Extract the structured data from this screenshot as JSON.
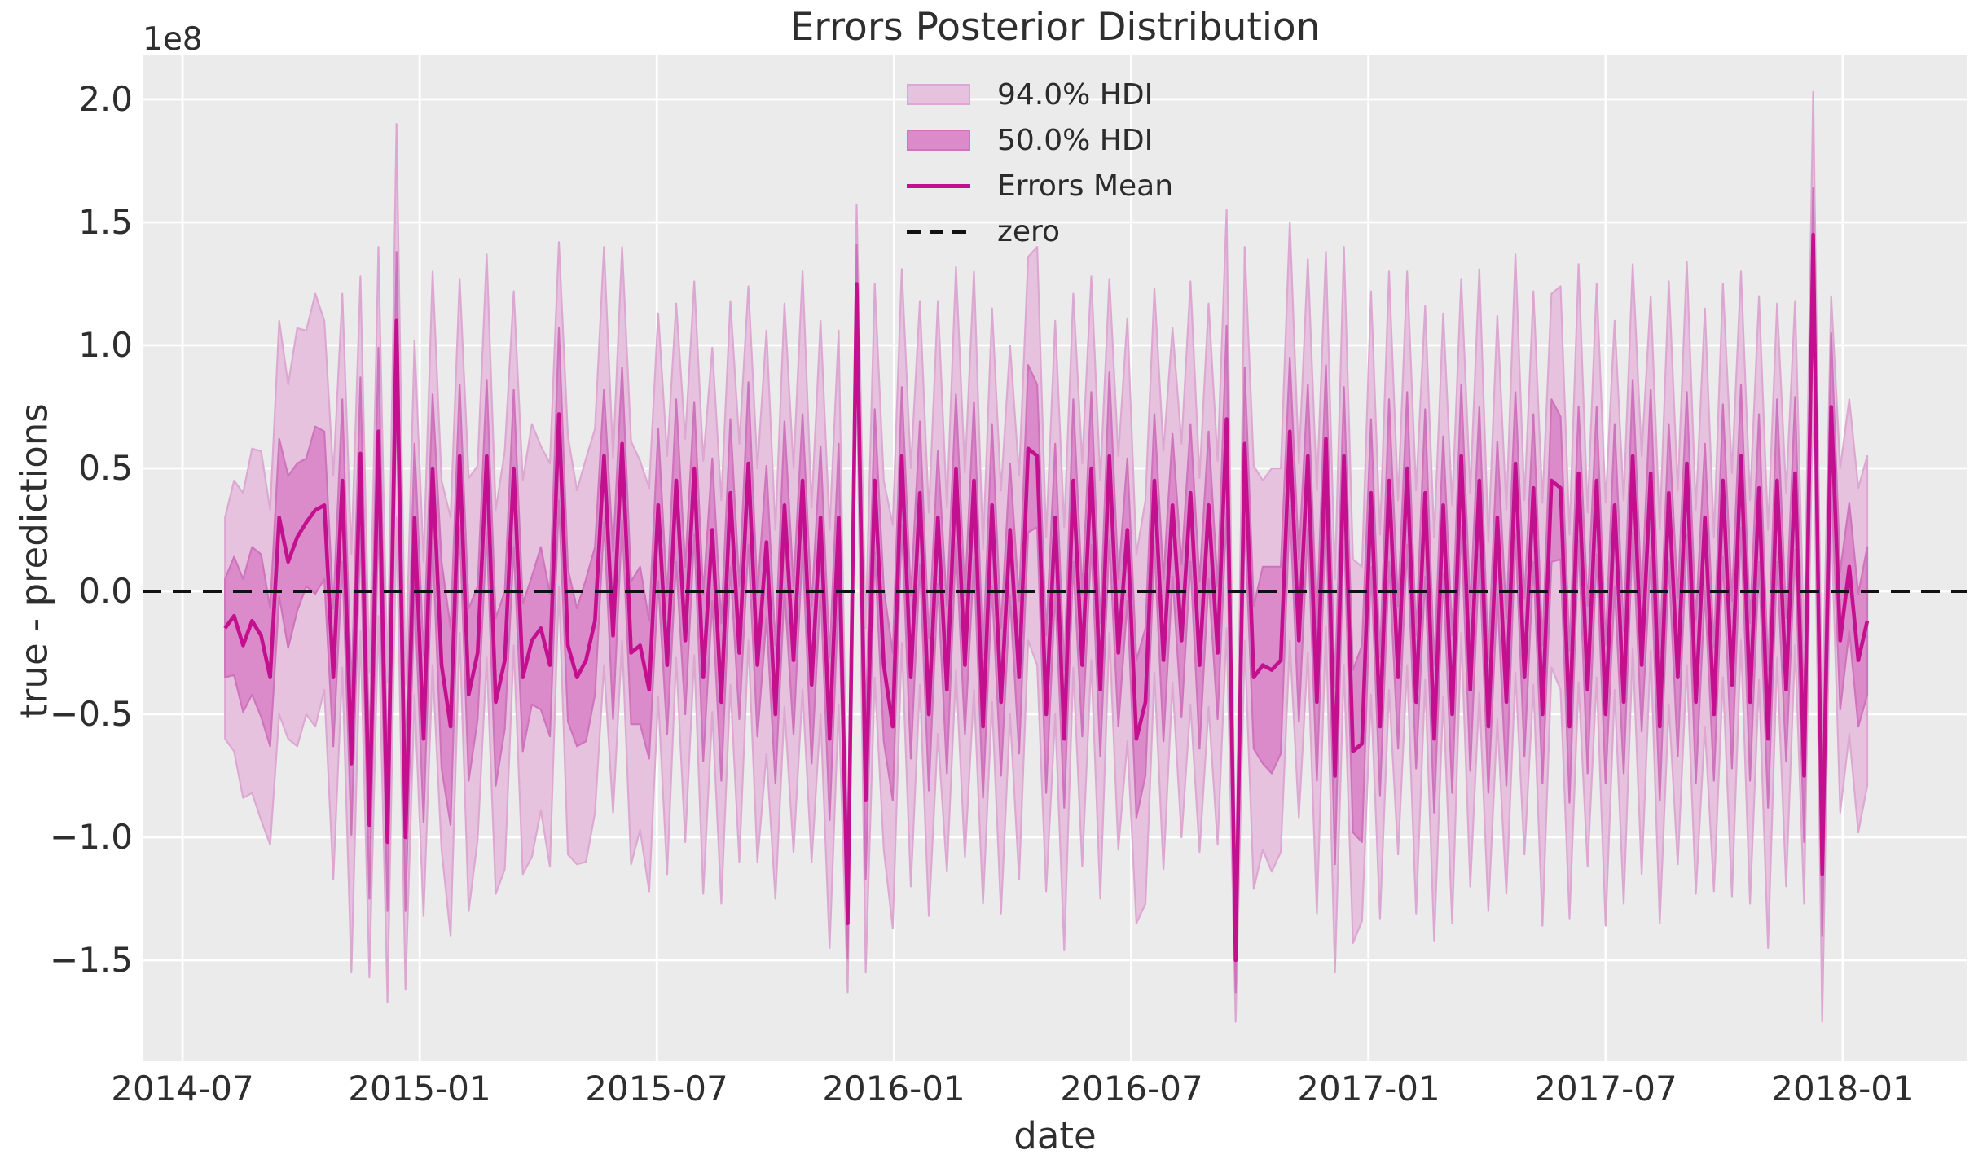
{
  "figure": {
    "title": "Errors Posterior Distribution",
    "offset_text": "1e8"
  },
  "colors": {
    "axes_background": "#ebebeb",
    "gridline": "#ffffff",
    "hdi94_fill": "#e6c2df",
    "hdi94_edge": "#dca8d2",
    "hdi50_fill": "#db8bc9",
    "hdi50_edge": "#ce74bc",
    "mean_line": "#c2108f",
    "zero_line": "#111111",
    "text": "#2e2e2e"
  },
  "chart_data": {
    "type": "area",
    "title": "Errors Posterior Distribution",
    "xlabel": "date",
    "ylabel": "true - predictions",
    "offset_text": "1e8",
    "legend": [
      "94.0% HDI",
      "50.0% HDI",
      "Errors Mean",
      "zero"
    ],
    "legend_position": "upper center, frameless",
    "grid": "white on light gray",
    "x_tick_labels": [
      "2014-07",
      "2015-01",
      "2015-07",
      "2016-01",
      "2016-07",
      "2017-01",
      "2017-07",
      "2018-01"
    ],
    "y_tick_labels": [
      "2.0",
      "1.5",
      "1.0",
      "0.5",
      "0.0",
      "−0.5",
      "−1.0",
      "−1.5"
    ],
    "y_tick_values": [
      2.0,
      1.5,
      1.0,
      0.5,
      0.0,
      -0.5,
      -1.0,
      -1.5
    ],
    "ylim": [
      -1.91,
      2.18
    ],
    "value_scale": "1e8",
    "zero_reference": 0,
    "start_date": "2014-08-03",
    "freq_days": 7,
    "series_format": "points[i] = [errors_mean, hdi94_halfwidth, hdi50_halfwidth] in units of 1e8; hdi94 = mean±hw94, hdi50 = mean±hw50",
    "points": [
      [
        -0.15,
        0.45,
        0.2
      ],
      [
        -0.1,
        0.55,
        0.24
      ],
      [
        -0.22,
        0.62,
        0.27
      ],
      [
        -0.12,
        0.7,
        0.3
      ],
      [
        -0.18,
        0.75,
        0.33
      ],
      [
        -0.35,
        0.68,
        0.28
      ],
      [
        0.3,
        0.8,
        0.32
      ],
      [
        0.12,
        0.72,
        0.35
      ],
      [
        0.22,
        0.85,
        0.3
      ],
      [
        0.28,
        0.78,
        0.26
      ],
      [
        0.33,
        0.88,
        0.34
      ],
      [
        0.35,
        0.75,
        0.3
      ],
      [
        -0.35,
        0.82,
        0.28
      ],
      [
        0.45,
        0.76,
        0.33
      ],
      [
        -0.7,
        0.85,
        0.29
      ],
      [
        0.56,
        0.72,
        0.31
      ],
      [
        -0.95,
        0.62,
        0.3
      ],
      [
        0.65,
        0.75,
        0.34
      ],
      [
        -1.02,
        0.65,
        0.28
      ],
      [
        1.1,
        0.8,
        0.28
      ],
      [
        -1.0,
        0.62,
        0.3
      ],
      [
        0.3,
        0.72,
        0.3
      ],
      [
        -0.6,
        0.72,
        0.34
      ],
      [
        0.5,
        0.8,
        0.3
      ],
      [
        -0.3,
        0.75,
        0.42
      ],
      [
        -0.55,
        0.85,
        0.4
      ],
      [
        0.55,
        0.72,
        0.29
      ],
      [
        -0.42,
        0.88,
        0.35
      ],
      [
        -0.25,
        0.76,
        0.27
      ],
      [
        0.55,
        0.82,
        0.31
      ],
      [
        -0.45,
        0.78,
        0.34
      ],
      [
        -0.28,
        0.85,
        0.28
      ],
      [
        0.5,
        0.72,
        0.32
      ],
      [
        -0.35,
        0.8,
        0.3
      ],
      [
        -0.2,
        0.88,
        0.26
      ],
      [
        -0.15,
        0.74,
        0.33
      ],
      [
        -0.3,
        0.82,
        0.29
      ],
      [
        0.72,
        0.7,
        0.35
      ],
      [
        -0.22,
        0.85,
        0.31
      ],
      [
        -0.35,
        0.76,
        0.28
      ],
      [
        -0.28,
        0.82,
        0.33
      ],
      [
        -0.12,
        0.78,
        0.3
      ],
      [
        0.55,
        0.85,
        0.27
      ],
      [
        -0.18,
        0.72,
        0.34
      ],
      [
        0.6,
        0.8,
        0.31
      ],
      [
        -0.25,
        0.86,
        0.29
      ],
      [
        -0.22,
        0.75,
        0.32
      ],
      [
        -0.4,
        0.82,
        0.28
      ],
      [
        0.35,
        0.78,
        0.31
      ],
      [
        -0.3,
        0.85,
        0.28
      ],
      [
        0.45,
        0.72,
        0.33
      ],
      [
        -0.2,
        0.82,
        0.3
      ],
      [
        0.5,
        0.76,
        0.27
      ],
      [
        -0.35,
        0.88,
        0.34
      ],
      [
        0.25,
        0.74,
        0.29
      ],
      [
        -0.45,
        0.82,
        0.32
      ],
      [
        0.4,
        0.78,
        0.3
      ],
      [
        -0.25,
        0.85,
        0.27
      ],
      [
        0.52,
        0.72,
        0.33
      ],
      [
        -0.3,
        0.8,
        0.29
      ],
      [
        0.2,
        0.86,
        0.31
      ],
      [
        -0.5,
        0.75,
        0.28
      ],
      [
        0.35,
        0.82,
        0.34
      ],
      [
        -0.28,
        0.78,
        0.3
      ],
      [
        0.45,
        0.85,
        0.27
      ],
      [
        -0.38,
        0.72,
        0.32
      ],
      [
        0.3,
        0.8,
        0.29
      ],
      [
        -0.6,
        0.85,
        0.33
      ],
      [
        0.3,
        0.76,
        0.3
      ],
      [
        -1.35,
        0.28,
        0.14
      ],
      [
        1.25,
        0.32,
        0.16
      ],
      [
        -0.85,
        0.7,
        0.32
      ],
      [
        0.45,
        0.8,
        0.29
      ],
      [
        -0.3,
        0.75,
        0.31
      ],
      [
        -0.55,
        0.82,
        0.3
      ],
      [
        0.55,
        0.76,
        0.28
      ],
      [
        -0.35,
        0.85,
        0.33
      ],
      [
        0.4,
        0.78,
        0.29
      ],
      [
        -0.5,
        0.82,
        0.31
      ],
      [
        0.3,
        0.88,
        0.27
      ],
      [
        -0.4,
        0.74,
        0.34
      ],
      [
        0.5,
        0.82,
        0.3
      ],
      [
        -0.3,
        0.78,
        0.28
      ],
      [
        0.45,
        0.85,
        0.32
      ],
      [
        -0.55,
        0.72,
        0.29
      ],
      [
        0.35,
        0.8,
        0.33
      ],
      [
        -0.45,
        0.86,
        0.3
      ],
      [
        0.25,
        0.75,
        0.27
      ],
      [
        -0.35,
        0.82,
        0.31
      ],
      [
        0.58,
        0.78,
        0.34
      ],
      [
        0.55,
        0.85,
        0.29
      ],
      [
        -0.5,
        0.72,
        0.32
      ],
      [
        0.3,
        0.8,
        0.3
      ],
      [
        -0.6,
        0.86,
        0.28
      ],
      [
        0.45,
        0.76,
        0.33
      ],
      [
        -0.3,
        0.82,
        0.29
      ],
      [
        0.5,
        0.78,
        0.31
      ],
      [
        -0.4,
        0.85,
        0.27
      ],
      [
        0.55,
        0.72,
        0.34
      ],
      [
        -0.25,
        0.8,
        0.3
      ],
      [
        0.25,
        0.86,
        0.29
      ],
      [
        -0.6,
        0.75,
        0.32
      ],
      [
        -0.45,
        0.82,
        0.3
      ],
      [
        0.45,
        0.78,
        0.27
      ],
      [
        -0.28,
        0.85,
        0.33
      ],
      [
        0.35,
        0.72,
        0.29
      ],
      [
        -0.2,
        0.8,
        0.31
      ],
      [
        0.4,
        0.86,
        0.28
      ],
      [
        -0.3,
        0.76,
        0.34
      ],
      [
        0.35,
        0.82,
        0.3
      ],
      [
        -0.25,
        0.78,
        0.27
      ],
      [
        0.7,
        0.85,
        0.38
      ],
      [
        -1.5,
        0.25,
        0.13
      ],
      [
        0.6,
        0.8,
        0.31
      ],
      [
        -0.35,
        0.86,
        0.29
      ],
      [
        -0.3,
        0.75,
        0.4
      ],
      [
        -0.32,
        0.82,
        0.42
      ],
      [
        -0.28,
        0.78,
        0.38
      ],
      [
        0.65,
        0.85,
        0.3
      ],
      [
        -0.2,
        0.72,
        0.33
      ],
      [
        0.55,
        0.8,
        0.29
      ],
      [
        -0.45,
        0.86,
        0.32
      ],
      [
        0.62,
        0.76,
        0.3
      ],
      [
        -0.75,
        0.8,
        0.36
      ],
      [
        0.55,
        0.85,
        0.28
      ],
      [
        -0.65,
        0.78,
        0.33
      ],
      [
        -0.62,
        0.72,
        0.4
      ],
      [
        0.4,
        0.82,
        0.3
      ],
      [
        -0.55,
        0.78,
        0.28
      ],
      [
        0.45,
        0.85,
        0.33
      ],
      [
        -0.35,
        0.72,
        0.29
      ],
      [
        0.5,
        0.8,
        0.31
      ],
      [
        -0.45,
        0.86,
        0.27
      ],
      [
        0.4,
        0.76,
        0.34
      ],
      [
        -0.6,
        0.82,
        0.3
      ],
      [
        0.35,
        0.78,
        0.28
      ],
      [
        -0.5,
        0.85,
        0.32
      ],
      [
        0.55,
        0.72,
        0.29
      ],
      [
        -0.4,
        0.8,
        0.33
      ],
      [
        0.45,
        0.86,
        0.3
      ],
      [
        -0.55,
        0.75,
        0.27
      ],
      [
        0.3,
        0.82,
        0.31
      ],
      [
        -0.45,
        0.78,
        0.34
      ],
      [
        0.52,
        0.85,
        0.29
      ],
      [
        -0.35,
        0.72,
        0.32
      ],
      [
        0.42,
        0.8,
        0.3
      ],
      [
        -0.5,
        0.86,
        0.28
      ],
      [
        0.45,
        0.76,
        0.33
      ],
      [
        0.42,
        0.82,
        0.29
      ],
      [
        -0.55,
        0.78,
        0.31
      ],
      [
        0.48,
        0.85,
        0.27
      ],
      [
        -0.4,
        0.72,
        0.34
      ],
      [
        0.45,
        0.8,
        0.3
      ],
      [
        -0.5,
        0.86,
        0.28
      ],
      [
        0.35,
        0.75,
        0.33
      ],
      [
        -0.45,
        0.82,
        0.29
      ],
      [
        0.55,
        0.78,
        0.31
      ],
      [
        -0.3,
        0.85,
        0.27
      ],
      [
        0.48,
        0.72,
        0.34
      ],
      [
        -0.55,
        0.8,
        0.3
      ],
      [
        0.4,
        0.86,
        0.28
      ],
      [
        -0.35,
        0.76,
        0.32
      ],
      [
        0.52,
        0.82,
        0.29
      ],
      [
        -0.45,
        0.78,
        0.33
      ],
      [
        0.3,
        0.85,
        0.3
      ],
      [
        -0.5,
        0.72,
        0.27
      ],
      [
        0.45,
        0.8,
        0.31
      ],
      [
        -0.38,
        0.86,
        0.34
      ],
      [
        0.55,
        0.75,
        0.29
      ],
      [
        -0.45,
        0.82,
        0.32
      ],
      [
        0.42,
        0.78,
        0.3
      ],
      [
        -0.6,
        0.85,
        0.28
      ],
      [
        0.45,
        0.72,
        0.33
      ],
      [
        -0.4,
        0.8,
        0.29
      ],
      [
        0.48,
        0.7,
        0.31
      ],
      [
        -0.75,
        0.52,
        0.27
      ],
      [
        1.45,
        0.58,
        0.19
      ],
      [
        -1.15,
        0.6,
        0.25
      ],
      [
        0.75,
        0.45,
        0.3
      ],
      [
        -0.2,
        0.7,
        0.28
      ],
      [
        0.1,
        0.68,
        0.26
      ],
      [
        -0.28,
        0.7,
        0.27
      ],
      [
        -0.12,
        0.67,
        0.3
      ]
    ]
  }
}
